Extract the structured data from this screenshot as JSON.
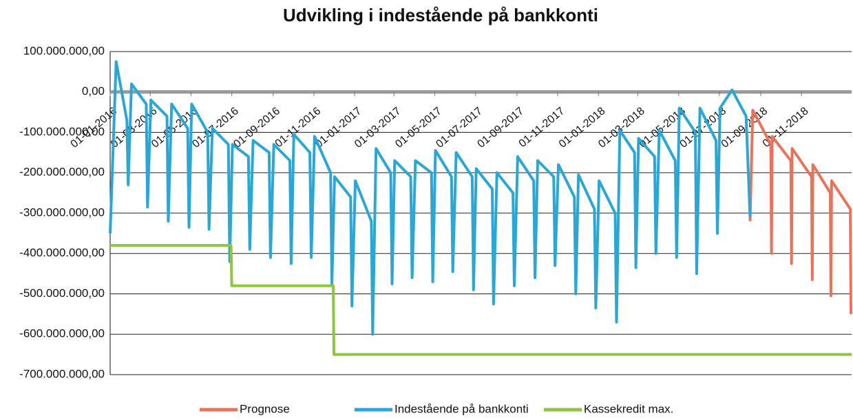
{
  "chart_data": {
    "type": "line",
    "title": "Udvikling i indestående på bankkonti",
    "xlim": [
      "2016-01-01",
      "2019-01-15"
    ],
    "xticks": [
      {
        "value": "2016-01-01",
        "label": "01-01-2016"
      },
      {
        "value": "2016-03-01",
        "label": "01-03-2016"
      },
      {
        "value": "2016-05-01",
        "label": "01-05-2016"
      },
      {
        "value": "2016-07-01",
        "label": "01-07-2016"
      },
      {
        "value": "2016-09-01",
        "label": "01-09-2016"
      },
      {
        "value": "2016-11-01",
        "label": "01-11-2016"
      },
      {
        "value": "2017-01-01",
        "label": "01-01-2017"
      },
      {
        "value": "2017-03-01",
        "label": "01-03-2017"
      },
      {
        "value": "2017-05-01",
        "label": "01-05-2017"
      },
      {
        "value": "2017-07-01",
        "label": "01-07-2017"
      },
      {
        "value": "2017-09-01",
        "label": "01-09-2017"
      },
      {
        "value": "2017-11-01",
        "label": "01-11-2017"
      },
      {
        "value": "2018-01-01",
        "label": "01-01-2018"
      },
      {
        "value": "2018-03-01",
        "label": "01-03-2018"
      },
      {
        "value": "2018-05-01",
        "label": "01-05-2018"
      },
      {
        "value": "2018-07-01",
        "label": "01-07-2018"
      },
      {
        "value": "2018-09-01",
        "label": "01-09-2018"
      },
      {
        "value": "2018-11-01",
        "label": "01-11-2018"
      }
    ],
    "ylim": [
      -700000000,
      100000000
    ],
    "yticks": [
      {
        "value": 100000000,
        "label": "100.000.000,00"
      },
      {
        "value": 0,
        "label": "0,00"
      },
      {
        "value": -100000000,
        "label": "-100.000.000,00"
      },
      {
        "value": -200000000,
        "label": "-200.000.000,00"
      },
      {
        "value": -300000000,
        "label": "-300.000.000,00"
      },
      {
        "value": -400000000,
        "label": "-400.000.000,00"
      },
      {
        "value": -500000000,
        "label": "-500.000.000,00"
      },
      {
        "value": -600000000,
        "label": "-600.000.000,00"
      },
      {
        "value": -700000000,
        "label": "-700.000.000,00"
      }
    ],
    "grid": true,
    "legend": "bottom",
    "series": [
      {
        "name": "Prognose",
        "color": "#e8735a",
        "x": [
          "2018-08-16",
          "2018-08-20",
          "2018-09-16",
          "2018-09-17",
          "2018-09-18",
          "2018-10-16",
          "2018-10-17",
          "2018-10-18",
          "2018-11-16",
          "2018-11-17",
          "2018-11-18",
          "2018-12-14",
          "2018-12-15",
          "2018-12-16",
          "2019-01-13",
          "2019-01-14"
        ],
        "values": [
          -320000000,
          -45000000,
          -130000000,
          -400000000,
          -110000000,
          -170000000,
          -425000000,
          -140000000,
          -210000000,
          -465000000,
          -180000000,
          -250000000,
          -505000000,
          -220000000,
          -290000000,
          -550000000
        ]
      },
      {
        "name": "Indestående på bankkonti",
        "color": "#2aa7d6",
        "x": [
          "2016-01-01",
          "2016-01-10",
          "2016-01-26",
          "2016-01-28",
          "2016-02-02",
          "2016-02-24",
          "2016-02-26",
          "2016-03-02",
          "2016-03-26",
          "2016-03-28",
          "2016-04-02",
          "2016-04-26",
          "2016-04-28",
          "2016-05-02",
          "2016-05-26",
          "2016-05-28",
          "2016-06-02",
          "2016-06-26",
          "2016-06-28",
          "2016-07-02",
          "2016-07-26",
          "2016-07-28",
          "2016-08-02",
          "2016-08-26",
          "2016-08-28",
          "2016-09-02",
          "2016-09-26",
          "2016-09-28",
          "2016-10-02",
          "2016-10-26",
          "2016-10-28",
          "2016-11-02",
          "2016-11-26",
          "2016-11-28",
          "2016-12-02",
          "2016-12-26",
          "2016-12-28",
          "2017-01-02",
          "2017-01-26",
          "2017-01-28",
          "2017-02-02",
          "2017-02-24",
          "2017-02-26",
          "2017-03-02",
          "2017-03-26",
          "2017-03-28",
          "2017-04-02",
          "2017-04-26",
          "2017-04-28",
          "2017-05-02",
          "2017-05-26",
          "2017-05-28",
          "2017-06-02",
          "2017-06-26",
          "2017-06-28",
          "2017-07-02",
          "2017-07-26",
          "2017-07-28",
          "2017-08-02",
          "2017-08-26",
          "2017-08-28",
          "2017-09-02",
          "2017-09-26",
          "2017-09-28",
          "2017-10-02",
          "2017-10-26",
          "2017-10-28",
          "2017-11-02",
          "2017-11-26",
          "2017-11-28",
          "2017-12-02",
          "2017-12-26",
          "2017-12-28",
          "2018-01-02",
          "2018-01-26",
          "2018-01-28",
          "2018-02-02",
          "2018-02-24",
          "2018-02-26",
          "2018-03-02",
          "2018-03-26",
          "2018-03-28",
          "2018-04-02",
          "2018-04-26",
          "2018-04-28",
          "2018-05-02",
          "2018-05-26",
          "2018-05-28",
          "2018-06-02",
          "2018-06-26",
          "2018-06-28",
          "2018-07-02",
          "2018-07-20",
          "2018-08-10",
          "2018-08-16"
        ],
        "values": [
          -350000000,
          75000000,
          -70000000,
          -230000000,
          20000000,
          -30000000,
          -285000000,
          -20000000,
          -60000000,
          -320000000,
          -30000000,
          -90000000,
          -335000000,
          -30000000,
          -100000000,
          -340000000,
          -90000000,
          -130000000,
          -420000000,
          -130000000,
          -160000000,
          -390000000,
          -120000000,
          -150000000,
          -410000000,
          -130000000,
          -170000000,
          -425000000,
          -105000000,
          -150000000,
          -410000000,
          -110000000,
          -200000000,
          -475000000,
          -210000000,
          -260000000,
          -530000000,
          -220000000,
          -320000000,
          -600000000,
          -140000000,
          -200000000,
          -475000000,
          -170000000,
          -210000000,
          -460000000,
          -170000000,
          -200000000,
          -470000000,
          -145000000,
          -210000000,
          -445000000,
          -150000000,
          -210000000,
          -490000000,
          -190000000,
          -240000000,
          -525000000,
          -200000000,
          -250000000,
          -480000000,
          -160000000,
          -220000000,
          -460000000,
          -170000000,
          -210000000,
          -430000000,
          -180000000,
          -260000000,
          -500000000,
          -205000000,
          -290000000,
          -535000000,
          -220000000,
          -300000000,
          -570000000,
          -95000000,
          -150000000,
          -435000000,
          -115000000,
          -160000000,
          -400000000,
          -95000000,
          -170000000,
          -410000000,
          -40000000,
          -100000000,
          -450000000,
          -40000000,
          -120000000,
          -350000000,
          -40000000,
          5000000,
          -60000000,
          -310000000
        ]
      },
      {
        "name": "Kassekredit max.",
        "color": "#8dc63f",
        "x": [
          "2016-01-01",
          "2016-06-30",
          "2016-07-01",
          "2016-11-30",
          "2016-12-01",
          "2019-01-15"
        ],
        "values": [
          -380000000,
          -380000000,
          -480000000,
          -480000000,
          -650000000,
          -650000000
        ]
      }
    ]
  }
}
